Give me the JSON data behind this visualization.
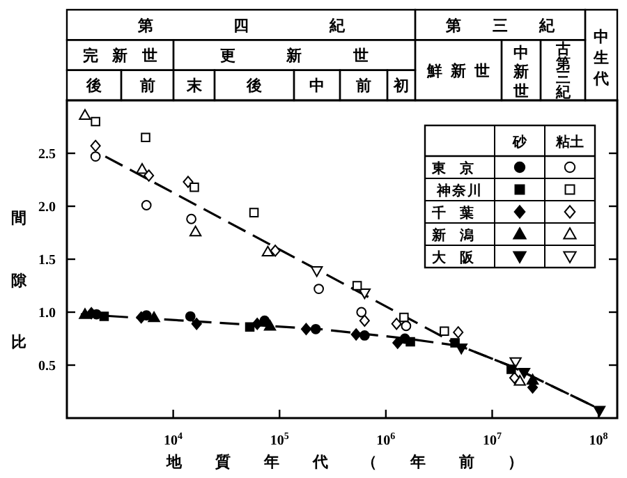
{
  "chart_data": [
    {
      "type": "scatter",
      "xlabel": "地質年代（年前）",
      "ylabel": "間隙比",
      "log": "x",
      "xlim": [
        1000,
        150000000
      ],
      "xticks": [
        {
          "value": 10000,
          "label": "10$^{4}$"
        },
        {
          "value": 100000,
          "label": "10$^{5}$"
        },
        {
          "value": 1000000,
          "label": "10$^{6}$"
        },
        {
          "value": 10000000,
          "label": "10$^{7}$"
        },
        {
          "value": 100000000,
          "label": "10$^{8}$"
        }
      ],
      "ylim": [
        0,
        3.0
      ],
      "yticks": [
        0.5,
        {
          "value": 1,
          "label": "1.0"
        },
        1.5,
        {
          "value": 2,
          "label": "2.0"
        },
        2.5
      ],
      "legend": "top right",
      "annotations": [
        "砂",
        "粘土"
      ],
      "series": [
        {
          "type": "line",
          "color": "#000000",
          "line_style": "dashed",
          "marker": "none",
          "x": [
            2300,
            5000000,
            15000000,
            100000000
          ],
          "values": [
            2.47,
            0.68,
            0.49,
            0.09
          ]
        },
        {
          "type": "line",
          "color": "#000000",
          "line_style": "dashed",
          "marker": "none",
          "x": [
            1350,
            240000,
            1600000,
            5000000,
            15000000,
            100000000
          ],
          "values": [
            0.98,
            0.84,
            0.75,
            0.68,
            0.49,
            0.09
          ]
        },
        {
          "name": "東京",
          "color": "#000000",
          "marker": "circle",
          "x": [
            1900,
            5600,
            14500,
            72400,
            219000,
            631000,
            1510000
          ],
          "values": [
            0.98,
            0.97,
            0.96,
            0.92,
            0.84,
            0.78,
            0.75
          ]
        },
        {
          "name": "神奈川",
          "color": "#000000",
          "marker": "square",
          "x": [
            2240,
            52500,
            1700000,
            4470000,
            15100000
          ],
          "values": [
            0.96,
            0.86,
            0.72,
            0.71,
            0.46
          ]
        },
        {
          "name": "千葉",
          "color": "#000000",
          "marker": "diamond",
          "x": [
            1700,
            5000,
            16600,
            61700,
            178000,
            525000,
            1290000,
            24000000
          ],
          "values": [
            0.99,
            0.95,
            0.89,
            0.89,
            0.84,
            0.79,
            0.71,
            0.29
          ]
        },
        {
          "name": "新潟",
          "color": "#000000",
          "marker": "triangle",
          "x": [
            1480,
            6600,
            81300,
            24000000
          ],
          "values": [
            0.98,
            0.95,
            0.87,
            0.36
          ]
        },
        {
          "name": "大阪",
          "color": "#000000",
          "marker": "triangle-down",
          "x": [
            5130000,
            20000000,
            102000000
          ],
          "values": [
            0.66,
            0.43,
            0.07
          ]
        },
        {
          "color": "#ffffff",
          "marker": "circle",
          "x": [
            1860,
            5600,
            14800,
            234000,
            589000,
            1550000
          ],
          "values": [
            2.47,
            2.01,
            1.88,
            1.22,
            1.0,
            0.87
          ]
        },
        {
          "color": "#ffffff",
          "marker": "square",
          "x": [
            1860,
            5500,
            15800,
            57500,
            537000,
            1480000,
            3550000
          ],
          "values": [
            2.8,
            2.65,
            2.18,
            1.94,
            1.25,
            0.95,
            0.82
          ]
        },
        {
          "color": "#ffffff",
          "marker": "diamond",
          "x": [
            1860,
            5900,
            13800,
            91200,
            631000,
            1260000,
            4790000,
            16200000
          ],
          "values": [
            2.57,
            2.29,
            2.23,
            1.58,
            0.92,
            0.89,
            0.81,
            0.38
          ]
        },
        {
          "color": "#ffffff",
          "marker": "triangle",
          "x": [
            1480,
            5100,
            16200,
            77600,
            18200000
          ],
          "values": [
            2.86,
            2.35,
            1.76,
            1.57,
            0.35
          ]
        },
        {
          "color": "#ffffff",
          "marker": "triangle-down",
          "x": [
            224000,
            631000,
            16600000
          ],
          "values": [
            1.39,
            1.18,
            0.53
          ]
        }
      ]
    },
    {
      "type": "other",
      "annotations": [
        "第四紀",
        "第三紀",
        "中生代",
        "完新世",
        "更新世",
        "鮮新世",
        "中新世",
        "古第三紀",
        "後",
        "前",
        "末",
        "後",
        "中",
        "前",
        "初"
      ]
    }
  ]
}
